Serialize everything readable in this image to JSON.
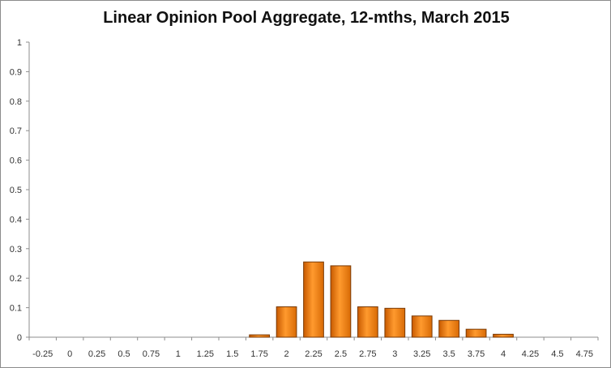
{
  "chart_data": {
    "type": "bar",
    "title": "Linear Opinion Pool Aggregate, 12-mths, March 2015",
    "xlabel": "",
    "ylabel": "",
    "categories": [
      "-0.25",
      "0",
      "0.25",
      "0.5",
      "0.75",
      "1",
      "1.25",
      "1.5",
      "1.75",
      "2",
      "2.25",
      "2.5",
      "2.75",
      "3",
      "3.25",
      "3.5",
      "3.75",
      "4",
      "4.25",
      "4.5",
      "4.75"
    ],
    "values": [
      0,
      0,
      0,
      0,
      0,
      0,
      0,
      0,
      0.008,
      0.103,
      0.255,
      0.242,
      0.103,
      0.098,
      0.072,
      0.057,
      0.027,
      0.01,
      0,
      0,
      0
    ],
    "y_ticks": [
      "0",
      "0.1",
      "0.2",
      "0.3",
      "0.4",
      "0.5",
      "0.6",
      "0.7",
      "0.8",
      "0.9",
      "1"
    ],
    "ylim": [
      0,
      1
    ],
    "grid": false,
    "legend": "none",
    "bar_color": "#f07d10",
    "bar_edge_color": "#7a3a05"
  }
}
